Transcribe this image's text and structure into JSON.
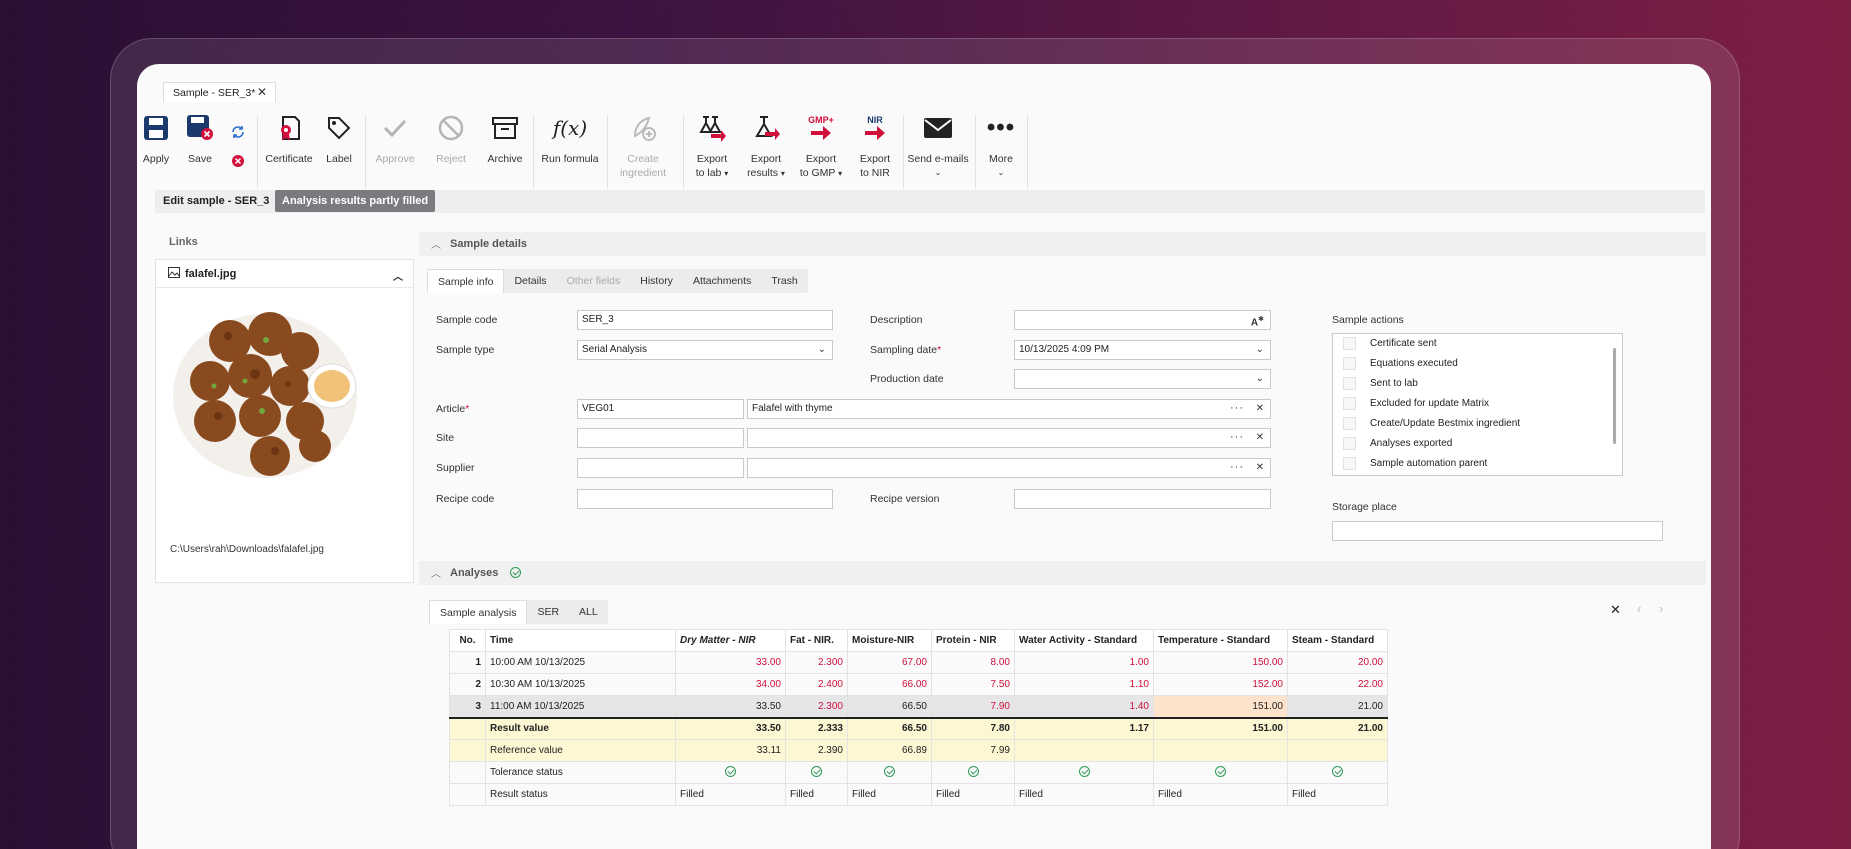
{
  "tab": {
    "title": "Sample - SER_3*",
    "close": "✕"
  },
  "ribbon": {
    "apply": "Apply",
    "save": "Save",
    "certificate": "Certificate",
    "label": "Label",
    "approve": "Approve",
    "reject": "Reject",
    "archive": "Archive",
    "run_formula": "Run formula",
    "create_ingredient_1": "Create",
    "create_ingredient_2": "ingredient",
    "export_lab_1": "Export",
    "export_lab_2": "to lab",
    "export_results_1": "Export",
    "export_results_2": "results",
    "export_gmp_1": "Export",
    "export_gmp_2": "to GMP",
    "export_nir_1": "Export",
    "export_nir_2": "to NIR",
    "send_emails": "Send e-mails",
    "more": "More",
    "gmp_logo": "GMP+",
    "nir_logo": "NIR"
  },
  "editbar": {
    "title": "Edit sample - SER_3",
    "badge": "Analysis results partly filled"
  },
  "links": {
    "heading": "Links",
    "file": "falafel.jpg",
    "path": "C:\\Users\\rah\\Downloads\\falafel.jpg"
  },
  "sample_details": {
    "heading": "Sample details",
    "tabs": [
      "Sample info",
      "Details",
      "Other fields",
      "History",
      "Attachments",
      "Trash"
    ],
    "labels": {
      "sample_code": "Sample code",
      "sample_type": "Sample type",
      "article": "Article",
      "site": "Site",
      "supplier": "Supplier",
      "recipe_code": "Recipe code",
      "description": "Description",
      "sampling_date": "Sampling date",
      "production_date": "Production date",
      "recipe_version": "Recipe version",
      "sample_actions": "Sample actions",
      "storage_place": "Storage place"
    },
    "values": {
      "sample_code": "SER_3",
      "sample_type": "Serial Analysis",
      "article_code": "VEG01",
      "article_name": "Falafel with thyme",
      "sampling_date": "10/13/2025 4:09 PM"
    },
    "sample_actions": [
      "Certificate sent",
      "Equations executed",
      "Sent to lab",
      "Excluded for update Matrix",
      "Create/Update Bestmix ingredient",
      "Analyses exported",
      "Sample automation parent"
    ]
  },
  "analyses": {
    "heading": "Analyses",
    "tabs": [
      "Sample analysis",
      "SER",
      "ALL"
    ],
    "columns": [
      "No.",
      "Time",
      "Dry Matter - NIR",
      "Fat - NIR.",
      "Moisture-NIR",
      "Protein - NIR",
      "Water Activity - Standard",
      "Temperature - Standard",
      "Steam - Standard"
    ],
    "rows": [
      {
        "no": "1",
        "time": "10:00 AM 10/13/2025",
        "v": [
          "33.00",
          "2.300",
          "67.00",
          "8.00",
          "1.00",
          "150.00",
          "20.00"
        ]
      },
      {
        "no": "2",
        "time": "10:30 AM 10/13/2025",
        "v": [
          "34.00",
          "2.400",
          "66.00",
          "7.50",
          "1.10",
          "152.00",
          "22.00"
        ]
      },
      {
        "no": "3",
        "time": "11:00 AM 10/13/2025",
        "v": [
          "33.50",
          "2.300",
          "66.50",
          "7.90",
          "1.40",
          "151.00",
          "21.00"
        ]
      }
    ],
    "result_label": "Result value",
    "result": [
      "33.50",
      "2.333",
      "66.50",
      "7.80",
      "1.17",
      "151.00",
      "21.00"
    ],
    "reference_label": "Reference value",
    "reference": [
      "33.11",
      "2.390",
      "66.89",
      "7.99"
    ],
    "tolerance_label": "Tolerance status",
    "status_label": "Result status",
    "status": [
      "Filled",
      "Filled",
      "Filled",
      "Filled",
      "Filled",
      "Filled",
      "Filled"
    ]
  }
}
